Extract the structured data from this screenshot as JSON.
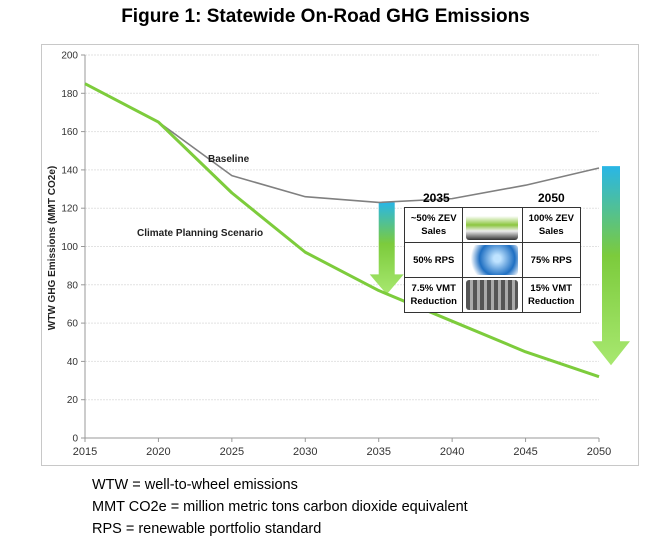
{
  "chart_data": {
    "type": "line",
    "title": "Figure 1: Statewide On-Road GHG Emissions",
    "ylabel": "WTW GHG Emissions (MMT CO2e)",
    "xlabel": "",
    "x": [
      2015,
      2020,
      2025,
      2030,
      2035,
      2040,
      2045,
      2050
    ],
    "xticks": [
      "2015",
      "2020",
      "2025",
      "2030",
      "2035",
      "2040",
      "2045",
      "2050"
    ],
    "yticks": [
      "0",
      "20",
      "40",
      "60",
      "80",
      "100",
      "120",
      "140",
      "160",
      "180",
      "200"
    ],
    "xlim": [
      2015,
      2050
    ],
    "ylim": [
      0,
      200
    ],
    "grid": true,
    "series": [
      {
        "name": "Baseline",
        "color": "#808080",
        "values": [
          185,
          165,
          137,
          126,
          123,
          125,
          132,
          141
        ]
      },
      {
        "name": "Climate Planning Scenario",
        "color": "#7dcc3c",
        "values": [
          185,
          165,
          128,
          97,
          77,
          61,
          45,
          32
        ]
      }
    ],
    "annotations": {
      "arrows": [
        {
          "x": 2035,
          "from": 123,
          "to": 75
        },
        {
          "x": 2050,
          "from": 142,
          "to": 38
        }
      ],
      "table": {
        "years": [
          "2035",
          "2050"
        ],
        "rows": [
          {
            "left": "~50% ZEV Sales",
            "icon": "electric-car-icon",
            "right": "100% ZEV Sales"
          },
          {
            "left": "50% RPS",
            "icon": "light-bulb-icon",
            "right": "75% RPS"
          },
          {
            "left": "7.5% VMT Reduction",
            "icon": "traffic-icon",
            "right": "15% VMT Reduction"
          }
        ]
      }
    }
  },
  "notes": [
    "WTW = well-to-wheel emissions",
    "MMT CO2e = million metric tons carbon dioxide equivalent",
    "RPS = renewable portfolio standard"
  ]
}
